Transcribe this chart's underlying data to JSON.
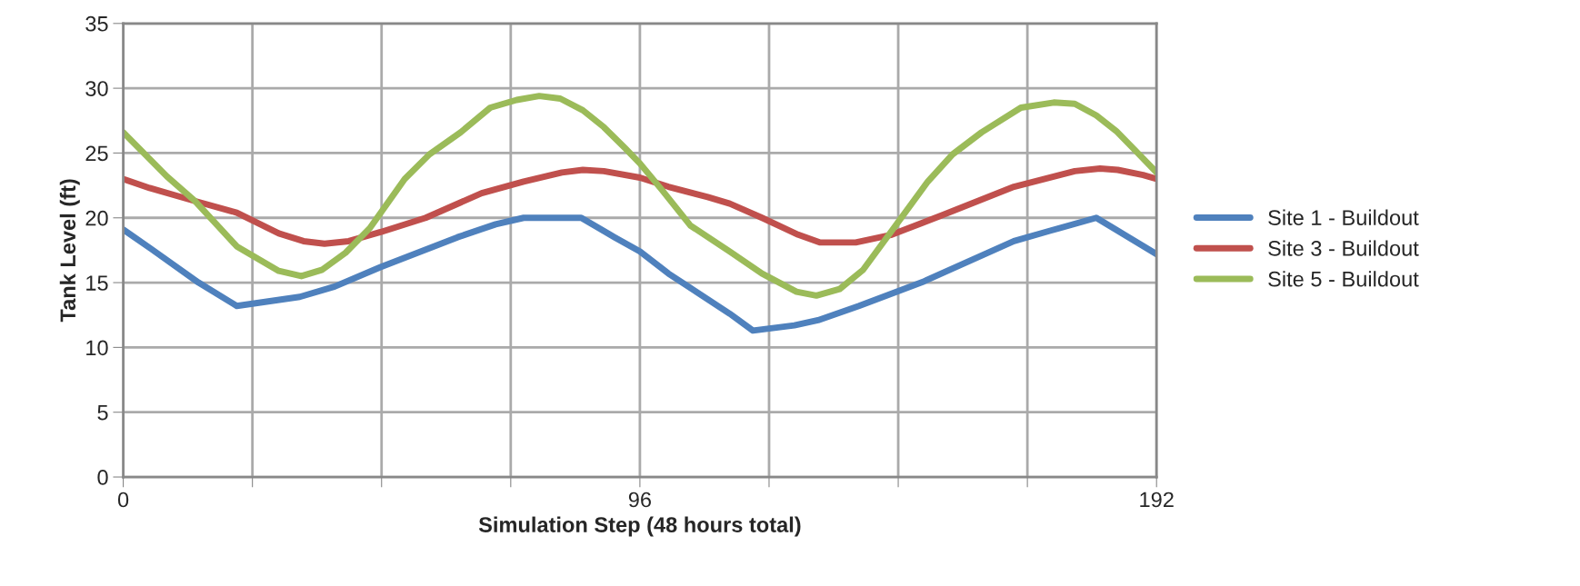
{
  "chart_data": {
    "type": "line",
    "xlabel": "Simulation Step (48 hours total)",
    "ylabel": "Tank Level (ft)",
    "xlim": [
      0,
      192
    ],
    "xticks": [
      0,
      {
        "value": 24,
        "label": null
      },
      {
        "value": 48,
        "label": null
      },
      {
        "value": 72,
        "label": null
      },
      96,
      {
        "value": 120,
        "label": null
      },
      {
        "value": 144,
        "label": null
      },
      {
        "value": 168,
        "label": null
      },
      192
    ],
    "ylim": [
      0,
      35
    ],
    "yticks": [
      0,
      5,
      10,
      15,
      20,
      25,
      30,
      35
    ],
    "grid": true,
    "legend": "right",
    "line_style": "solid",
    "marker": "none",
    "series": [
      {
        "name": "Site 1 - Buildout",
        "color": "#4f81bd",
        "x": [
          0,
          5.2,
          14,
          21.1,
          32.8,
          39.3,
          47.8,
          62.1,
          69.2,
          74.4,
          85.1,
          91.3,
          96,
          101.3,
          112.7,
          117,
          124.7,
          129.1,
          136.7,
          148.8,
          165.5,
          172.2,
          180.8,
          184.8,
          192
        ],
        "values": [
          19.1,
          17.6,
          15,
          13.2,
          13.9,
          14.7,
          16.2,
          18.5,
          19.5,
          20,
          20,
          18.5,
          17.4,
          15.7,
          12.6,
          11.3,
          11.7,
          12.1,
          13.2,
          15.1,
          18.2,
          19,
          20,
          19,
          17.2
        ]
      },
      {
        "name": "Site 3 - Buildout",
        "color": "#c0504d",
        "x": [
          0,
          4.9,
          13.3,
          21.1,
          28.9,
          33.5,
          37.4,
          41.9,
          47.8,
          56.2,
          66.6,
          74.4,
          81.5,
          85.4,
          89.3,
          96,
          101.3,
          108.6,
          112.7,
          118.7,
          125.4,
          129.4,
          136.1,
          142.8,
          152.1,
          165.5,
          176.8,
          181.5,
          184.8,
          189.5,
          192
        ],
        "values": [
          23,
          22.3,
          21.3,
          20.4,
          18.8,
          18.2,
          18,
          18.2,
          18.9,
          20,
          21.9,
          22.8,
          23.5,
          23.7,
          23.6,
          23.1,
          22.4,
          21.6,
          21.1,
          20,
          18.7,
          18.1,
          18.1,
          18.7,
          20.2,
          22.4,
          23.6,
          23.8,
          23.7,
          23.3,
          23
        ]
      },
      {
        "name": "Site 5 - Buildout",
        "color": "#9bbb59",
        "x": [
          0,
          8.1,
          13.3,
          21.1,
          28.9,
          33.1,
          37,
          41.3,
          45.8,
          52.3,
          56.9,
          62.7,
          68.2,
          73.1,
          77.3,
          81.2,
          85.4,
          89.3,
          93.2,
          96,
          100,
          105.4,
          112.7,
          118.7,
          125.1,
          128.8,
          133.1,
          137.5,
          142.8,
          149.5,
          154.1,
          159.5,
          166.8,
          172.9,
          176.8,
          180.8,
          184.5,
          188.5,
          192
        ],
        "values": [
          26.6,
          23.2,
          21.3,
          17.8,
          15.9,
          15.5,
          16,
          17.3,
          19.2,
          23,
          24.9,
          26.6,
          28.5,
          29.1,
          29.4,
          29.2,
          28.3,
          27,
          25.4,
          24.2,
          22.2,
          19.4,
          17.4,
          15.7,
          14.3,
          14,
          14.5,
          16,
          19,
          22.8,
          24.9,
          26.6,
          28.5,
          28.9,
          28.8,
          27.9,
          26.7,
          25,
          23.5
        ]
      }
    ]
  }
}
